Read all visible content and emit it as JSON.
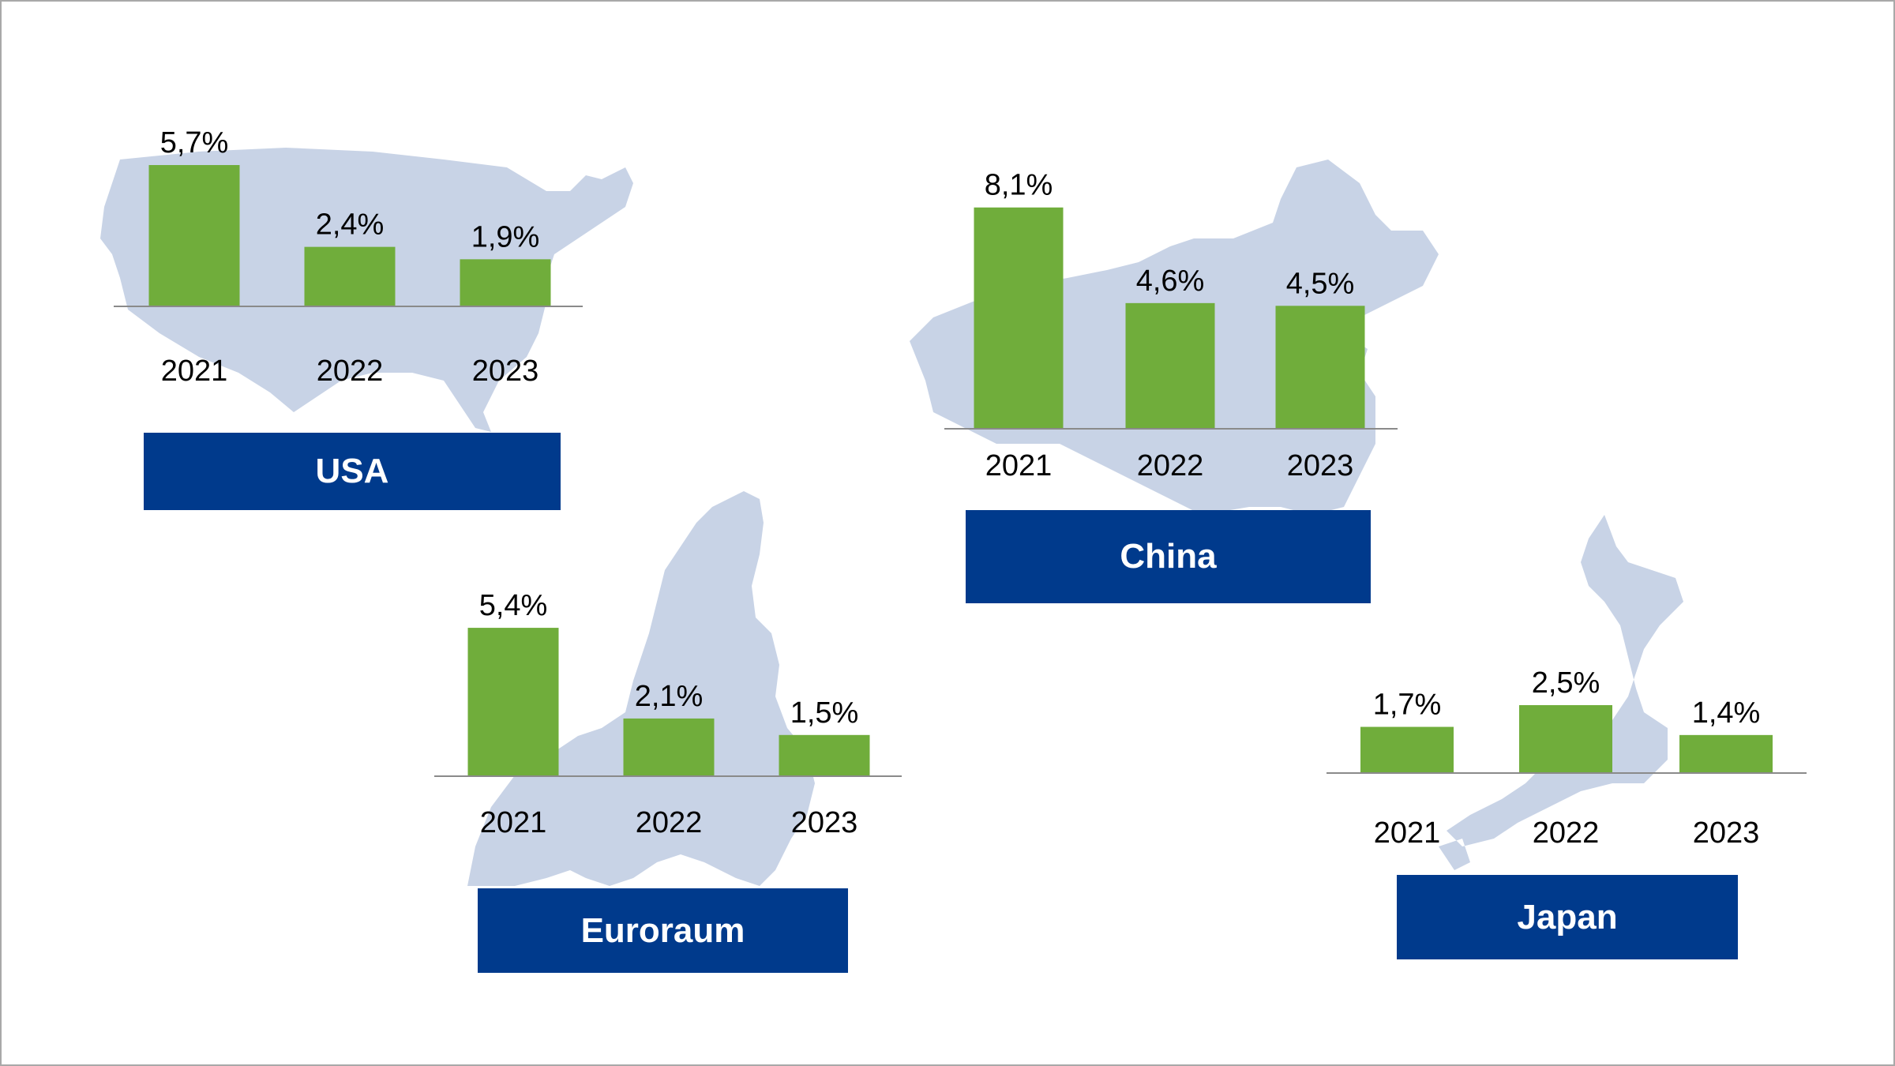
{
  "colors": {
    "bar": "#70ad3b",
    "map": "#c8d3e6",
    "label_bg": "#003a8c",
    "label_text": "#ffffff",
    "axis": "#8a8a8a"
  },
  "chart_data": [
    {
      "type": "bar",
      "region": "USA",
      "categories": [
        "2021",
        "2022",
        "2023"
      ],
      "values": [
        5.7,
        2.4,
        1.9
      ],
      "value_labels": [
        "5,7%",
        "2,4%",
        "1,9%"
      ],
      "unit": "%"
    },
    {
      "type": "bar",
      "region": "China",
      "categories": [
        "2021",
        "2022",
        "2023"
      ],
      "values": [
        8.1,
        4.6,
        4.5
      ],
      "value_labels": [
        "8,1%",
        "4,6%",
        "4,5%"
      ],
      "unit": "%"
    },
    {
      "type": "bar",
      "region": "Euroraum",
      "categories": [
        "2021",
        "2022",
        "2023"
      ],
      "values": [
        5.4,
        2.1,
        1.5
      ],
      "value_labels": [
        "5,4%",
        "2,1%",
        "1,5%"
      ],
      "unit": "%"
    },
    {
      "type": "bar",
      "region": "Japan",
      "categories": [
        "2021",
        "2022",
        "2023"
      ],
      "values": [
        1.7,
        2.5,
        1.4
      ],
      "value_labels": [
        "1,7%",
        "2,5%",
        "1,4%"
      ],
      "unit": "%"
    }
  ]
}
